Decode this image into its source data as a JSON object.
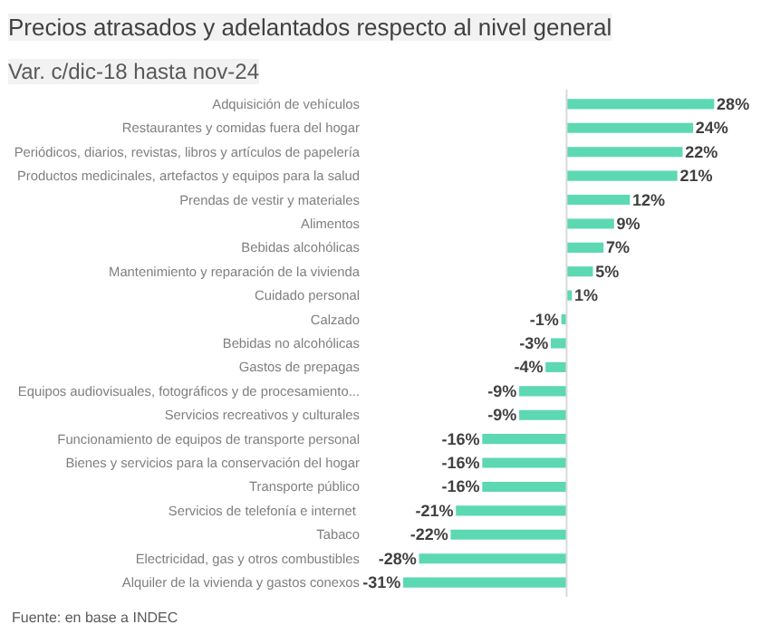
{
  "chart_data": {
    "type": "bar",
    "orientation": "horizontal",
    "title": "Precios atrasados y adelantados respecto al nivel general",
    "subtitle": "Var. c/dic-18 hasta nov-24",
    "categories": [
      "Adquisición de vehículos",
      "Restaurantes y comidas fuera del hogar",
      "Periódicos, diarios, revistas, libros y artículos de papelería",
      "Productos medicinales, artefactos y equipos para la salud",
      "Prendas de vestir y materiales",
      "Alimentos",
      "Bebidas alcohólicas",
      "Mantenimiento y reparación de la vivienda",
      "Cuidado personal",
      "Calzado",
      "Bebidas no alcohólicas",
      "Gastos de prepagas",
      "Equipos audiovisuales, fotográficos y de procesamiento...",
      "Servicios recreativos y culturales",
      "Funcionamiento de equipos de transporte personal",
      "Bienes y servicios para la conservación del hogar",
      "Transporte público",
      "Servicios  de telefonía e internet",
      "Tabaco",
      "Electricidad, gas y otros combustibles",
      "Alquiler de la vivienda y gastos conexos"
    ],
    "values": [
      28,
      24,
      22,
      21,
      12,
      9,
      7,
      5,
      1,
      -1,
      -3,
      -4,
      -9,
      -9,
      -16,
      -16,
      -16,
      -21,
      -22,
      -28,
      -31
    ],
    "value_labels": [
      "28%",
      "24%",
      "22%",
      "21%",
      "12%",
      "9%",
      "7%",
      "5%",
      "1%",
      "-1%",
      "-3%",
      "-4%",
      "-9%",
      "-9%",
      "-16%",
      "-16%",
      "-16%",
      "-21%",
      "-22%",
      "-28%",
      "-31%"
    ],
    "color": "#5cd8b2",
    "grid": false,
    "annotations": [
      "Fuente: en base a INDEC"
    ]
  }
}
